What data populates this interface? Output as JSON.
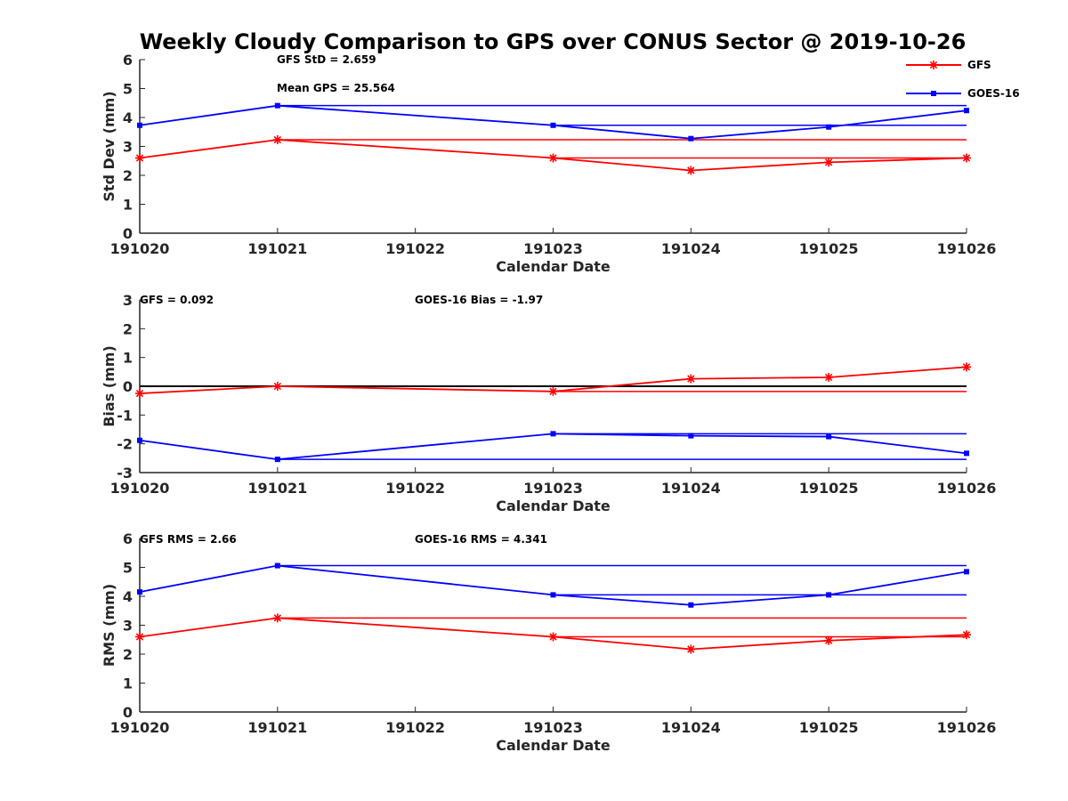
{
  "figure": {
    "title": "Weekly Cloudy Comparison to GPS over CONUS Sector @ 2019-10-26"
  },
  "legend": {
    "items": [
      {
        "label": "GFS",
        "color": "#ff0000",
        "marker": "asterisk"
      },
      {
        "label": "GOES-16",
        "color": "#0000ff",
        "marker": "square"
      }
    ]
  },
  "chart_data": [
    {
      "type": "line",
      "xlabel": "Calendar Date",
      "ylabel": "Std Dev (mm)",
      "categories": [
        "191020",
        "191021",
        "191022",
        "191023",
        "191024",
        "191025",
        "191026"
      ],
      "ylim": [
        0,
        6
      ],
      "yticks": [
        0,
        1,
        2,
        3,
        4,
        5,
        6
      ],
      "annotations": [
        "GFS StD = 2.659",
        "Mean GPS = 25.564"
      ],
      "series": [
        {
          "name": "GFS",
          "color": "#ff0000",
          "marker": "asterisk",
          "values": [
            2.6,
            3.23,
            null,
            2.6,
            2.17,
            2.45,
            2.6
          ]
        },
        {
          "name": "GOES-16",
          "color": "#0000ff",
          "marker": "square",
          "values": [
            3.73,
            4.41,
            null,
            3.73,
            3.27,
            3.67,
            4.24
          ]
        }
      ],
      "reference_lines": [
        {
          "color": "#ff0000",
          "y": 3.23,
          "x_from": "191021",
          "x_to": "191026"
        },
        {
          "color": "#ff0000",
          "y": 2.6,
          "x_from": "191023",
          "x_to": "191026"
        },
        {
          "color": "#0000ff",
          "y": 4.41,
          "x_from": "191021",
          "x_to": "191026"
        },
        {
          "color": "#0000ff",
          "y": 3.73,
          "x_from": "191023",
          "x_to": "191026"
        }
      ]
    },
    {
      "type": "line",
      "xlabel": "Calendar Date",
      "ylabel": "Bias (mm)",
      "categories": [
        "191020",
        "191021",
        "191022",
        "191023",
        "191024",
        "191025",
        "191026"
      ],
      "ylim": [
        -3,
        3
      ],
      "yticks": [
        -3,
        -2,
        -1,
        0,
        1,
        2,
        3
      ],
      "annotations": [
        "GFS = 0.092",
        "GOES-16 Bias  = -1.97"
      ],
      "series": [
        {
          "name": "GFS",
          "color": "#ff0000",
          "marker": "asterisk",
          "values": [
            -0.25,
            0.0,
            null,
            -0.18,
            0.26,
            0.31,
            0.67
          ]
        },
        {
          "name": "GOES-16",
          "color": "#0000ff",
          "marker": "square",
          "values": [
            -1.88,
            -2.54,
            null,
            -1.65,
            -1.72,
            -1.75,
            -2.33
          ]
        }
      ],
      "reference_lines": [
        {
          "color": "#000000",
          "y": 0,
          "x_from": "191020",
          "x_to": "191026"
        },
        {
          "color": "#ff0000",
          "y": -0.18,
          "x_from": "191023",
          "x_to": "191026"
        },
        {
          "color": "#0000ff",
          "y": -2.54,
          "x_from": "191021",
          "x_to": "191026"
        },
        {
          "color": "#0000ff",
          "y": -1.65,
          "x_from": "191023",
          "x_to": "191026"
        }
      ]
    },
    {
      "type": "line",
      "xlabel": "Calendar Date",
      "ylabel": "RMS (mm)",
      "categories": [
        "191020",
        "191021",
        "191022",
        "191023",
        "191024",
        "191025",
        "191026"
      ],
      "ylim": [
        0,
        6
      ],
      "yticks": [
        0,
        1,
        2,
        3,
        4,
        5,
        6
      ],
      "annotations": [
        "GFS RMS = 2.66",
        "GOES-16 RMS = 4.341"
      ],
      "series": [
        {
          "name": "GFS",
          "color": "#ff0000",
          "marker": "asterisk",
          "values": [
            2.6,
            3.25,
            null,
            2.6,
            2.17,
            2.47,
            2.67
          ]
        },
        {
          "name": "GOES-16",
          "color": "#0000ff",
          "marker": "square",
          "values": [
            4.15,
            5.06,
            null,
            4.05,
            3.7,
            4.05,
            4.85
          ]
        }
      ],
      "reference_lines": [
        {
          "color": "#ff0000",
          "y": 3.25,
          "x_from": "191021",
          "x_to": "191026"
        },
        {
          "color": "#ff0000",
          "y": 2.6,
          "x_from": "191023",
          "x_to": "191026"
        },
        {
          "color": "#0000ff",
          "y": 5.06,
          "x_from": "191021",
          "x_to": "191026"
        },
        {
          "color": "#0000ff",
          "y": 4.05,
          "x_from": "191023",
          "x_to": "191026"
        }
      ]
    }
  ]
}
